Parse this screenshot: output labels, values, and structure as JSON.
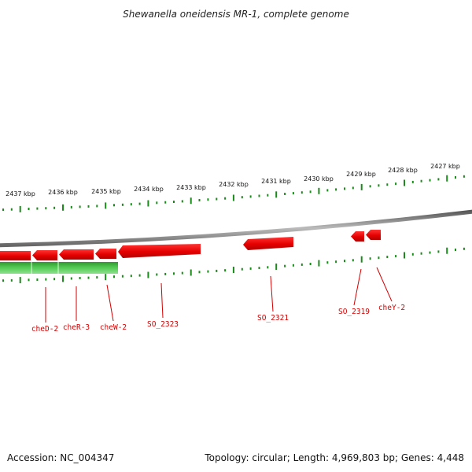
{
  "title": "Shewanella oneidensis MR-1, complete genome",
  "footer": {
    "accession": "Accession: NC_004347",
    "summary": "Topology: circular; Length: 4,969,803 bp; Genes: 4,448"
  },
  "colors": {
    "forward_gene": "#ee0000",
    "reverse_gene": "#33bb33",
    "backbone": "#888888",
    "ticks": "#1a8a1a",
    "label": "#d40000"
  },
  "upper_ruler": [
    "2437 kbp",
    "2436 kbp",
    "2435 kbp",
    "2434 kbp",
    "2433 kbp",
    "2432 kbp",
    "2431 kbp",
    "2430 kbp",
    "2429 kbp",
    "2428 kbp",
    "2427 kbp"
  ],
  "gene_labels": [
    "cheD-2",
    "cheR-3",
    "cheW-2",
    "SO_2323",
    "SO_2321",
    "SO_2319",
    "cheY-2"
  ]
}
